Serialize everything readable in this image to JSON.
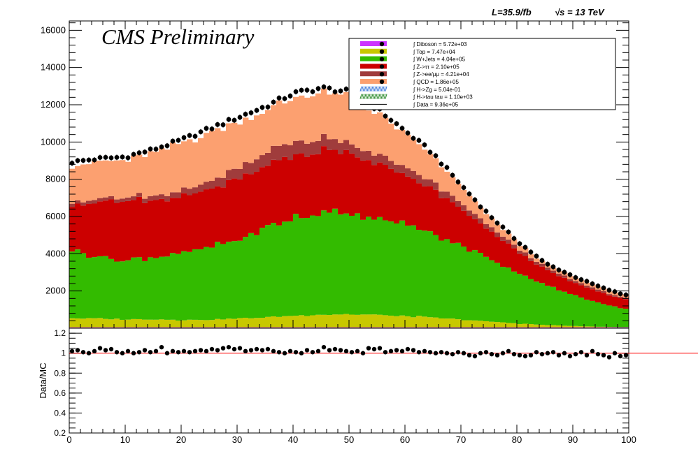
{
  "header": {
    "experiment_label": "CMS Preliminary",
    "lumi_label": "L=35.9/fb",
    "energy_label": "√s = 13 TeV"
  },
  "ratio_panel": {
    "ylabel": "Data/MC",
    "ylim": [
      0.2,
      1.25
    ],
    "yticks": [
      "0.2",
      "0.4",
      "0.6",
      "0.8",
      "1",
      "1.2"
    ],
    "reference_line": 1.0,
    "reference_color": "#ff0000"
  },
  "legend": {
    "entries": [
      {
        "name": "Diboson",
        "label": "∫ Diboson = 5.72e+03",
        "color": "#cc33ff",
        "style": "fill"
      },
      {
        "name": "Top",
        "label": "∫ Top = 7.47e+04",
        "color": "#c8c800",
        "style": "fill"
      },
      {
        "name": "W+Jets",
        "label": "∫ W+Jets = 4.04e+05",
        "color": "#33bb00",
        "style": "fill"
      },
      {
        "name": "Z->tautau",
        "label": "∫ Z->ττ = 2.10e+05",
        "color": "#cc0000",
        "style": "fill"
      },
      {
        "name": "Z->ee/mumu",
        "label": "∫ Z->ee/μμ = 4.21e+04",
        "color": "#a03c3c",
        "style": "fill"
      },
      {
        "name": "QCD",
        "label": "∫ QCD = 1.86e+05",
        "color": "#fca070",
        "style": "fill"
      },
      {
        "name": "H->Zg",
        "label": "∫ H->Zg = 5.04e-01",
        "color": "#3c78dc",
        "style": "hatch"
      },
      {
        "name": "H->tau tau",
        "label": "∫ H->tau tau = 1.10e+03",
        "color": "#2a8a2a",
        "style": "hatch"
      },
      {
        "name": "Data",
        "label": "∫ Data = 9.36e+05",
        "color": "#000000",
        "style": "marker"
      }
    ]
  },
  "chart_data": {
    "type": "bar",
    "stacked": true,
    "title": "",
    "xlabel": "",
    "ylabel": "",
    "xlim": [
      0,
      100
    ],
    "ylim": [
      0,
      16500
    ],
    "xticks": [
      "0",
      "10",
      "20",
      "30",
      "40",
      "50",
      "60",
      "70",
      "80",
      "90",
      "100"
    ],
    "yticks": [
      "2000",
      "4000",
      "6000",
      "8000",
      "10000",
      "12000",
      "14000",
      "16000"
    ],
    "bin_width": 1,
    "shape_model": {
      "anchor_x": [
        0,
        5,
        10,
        15,
        20,
        25,
        30,
        35,
        40,
        45,
        50,
        55,
        60,
        65,
        70,
        75,
        80,
        85,
        90,
        95,
        99
      ],
      "data_anchor": [
        8900,
        9100,
        9200,
        9600,
        10100,
        10700,
        11300,
        11900,
        12600,
        12900,
        12700,
        11800,
        10600,
        9400,
        7700,
        6100,
        4700,
        3500,
        2800,
        2200,
        1800
      ],
      "series_anchor_fraction_of_total": {
        "Top": [
          0.065,
          0.057,
          0.053,
          0.05,
          0.045,
          0.044,
          0.047,
          0.05,
          0.054,
          0.057,
          0.058,
          0.06,
          0.06,
          0.06,
          0.06,
          0.058,
          0.055,
          0.05,
          0.045,
          0.035,
          0.03
        ],
        "W+Jets": [
          0.44,
          0.37,
          0.35,
          0.35,
          0.36,
          0.37,
          0.38,
          0.41,
          0.42,
          0.42,
          0.43,
          0.44,
          0.45,
          0.47,
          0.51,
          0.55,
          0.59,
          0.62,
          0.6,
          0.58,
          0.56
        ],
        "Z->tautau": [
          0.29,
          0.33,
          0.34,
          0.32,
          0.3,
          0.29,
          0.29,
          0.28,
          0.27,
          0.26,
          0.25,
          0.25,
          0.25,
          0.25,
          0.25,
          0.25,
          0.24,
          0.24,
          0.25,
          0.27,
          0.28
        ],
        "Z->ee/mumu": [
          0.02,
          0.02,
          0.02,
          0.025,
          0.03,
          0.04,
          0.05,
          0.06,
          0.06,
          0.05,
          0.04,
          0.04,
          0.04,
          0.04,
          0.04,
          0.04,
          0.04,
          0.04,
          0.04,
          0.04,
          0.04
        ],
        "QCD": [
          0.23,
          0.22,
          0.22,
          0.24,
          0.26,
          0.25,
          0.23,
          0.19,
          0.19,
          0.2,
          0.2,
          0.18,
          0.17,
          0.15,
          0.11,
          0.08,
          0.06,
          0.04,
          0.055,
          0.065,
          0.08
        ]
      },
      "mc_to_data_ratio": 0.98
    },
    "ratio_values": [
      1.02,
      1.03,
      1.01,
      1.0,
      1.02,
      1.05,
      1.03,
      1.04,
      1.01,
      1.0,
      1.02,
      1.0,
      1.01,
      1.03,
      1.01,
      1.02,
      1.06,
      1.0,
      1.02,
      1.01,
      1.02,
      1.01,
      1.02,
      1.03,
      1.02,
      1.04,
      1.03,
      1.05,
      1.06,
      1.04,
      1.05,
      1.02,
      1.03,
      1.04,
      1.03,
      1.04,
      1.02,
      1.01,
      1.0,
      1.02,
      1.01,
      1.0,
      1.03,
      1.01,
      1.02,
      1.06,
      1.03,
      1.04,
      1.03,
      1.02,
      1.01,
      1.02,
      1.0,
      1.05,
      1.04,
      1.05,
      1.01,
      1.02,
      1.03,
      1.02,
      1.04,
      1.03,
      1.01,
      1.02,
      1.01,
      1.0,
      1.01,
      1.0,
      0.99,
      1.01,
      1.0,
      0.98,
      0.97,
      1.0,
      1.01,
      0.99,
      0.98,
      1.0,
      1.02,
      0.99,
      0.98,
      0.97,
      0.98,
      1.01,
      0.99,
      1.0,
      1.01,
      0.98,
      1.0,
      0.97,
      0.99,
      1.01,
      0.98,
      1.02,
      0.99,
      0.98,
      0.96,
      1.0,
      0.97,
      0.98
    ]
  }
}
